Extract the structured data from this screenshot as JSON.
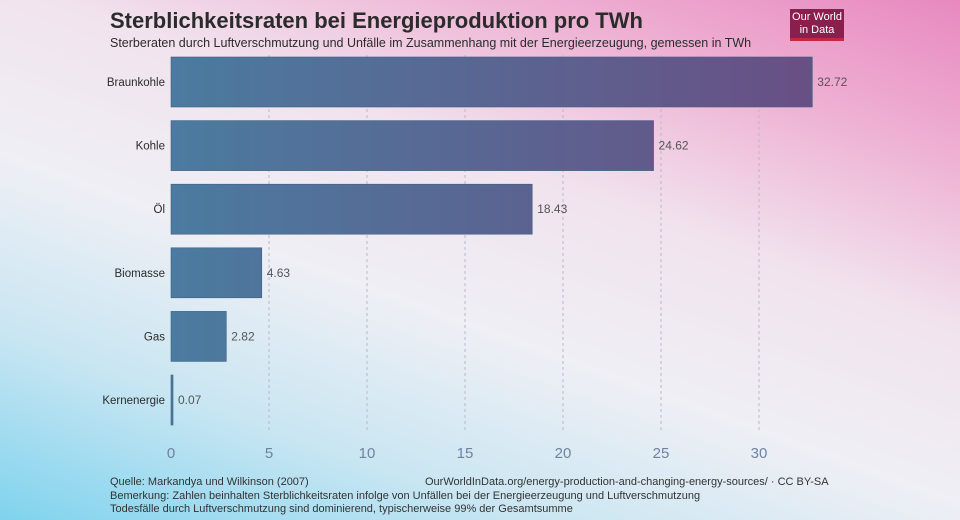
{
  "title": "Sterblichkeitsraten bei Energieproduktion pro TWh",
  "subtitle": "Sterberaten durch Luftverschmutzung und Unfälle im Zusammenhang mit der Energieerzeugung, gemessen in TWh",
  "logo": {
    "line1": "Our World",
    "line2": "in Data"
  },
  "footer": {
    "source": "Quelle: Markandya und Wilkinson (2007)",
    "url": "OurWorldInData.org/energy-production-and-changing-energy-sources/ · CC BY-SA",
    "note1": "Bemerkung: Zahlen beinhalten Sterblichkeitsraten infolge von Unfällen bei der Energieerzeugung und Luftverschmutzung",
    "note2": "Todesfälle durch Luftverschmutzung sind dominierend, typischerweise 99% der Gesamtsumme"
  },
  "colors": {
    "bar_start": "#4b7ba0",
    "bar_end": "#6b4c82",
    "grid": "#b9b9c9",
    "label": "#2b2b2b",
    "value": "#555555",
    "tick": "#6f83a0"
  },
  "chart_data": {
    "type": "bar",
    "orientation": "horizontal",
    "categories": [
      "Braunkohle",
      "Kohle",
      "Öl",
      "Biomasse",
      "Gas",
      "Kernenergie"
    ],
    "values": [
      32.72,
      24.62,
      18.43,
      4.63,
      2.82,
      0.07
    ],
    "value_labels": [
      "32.72",
      "24.62",
      "18.43",
      "4.63",
      "2.82",
      "0.07"
    ],
    "xlim": [
      0,
      35
    ],
    "xticks": [
      0,
      5,
      10,
      15,
      20,
      25,
      30
    ],
    "grid": true
  }
}
